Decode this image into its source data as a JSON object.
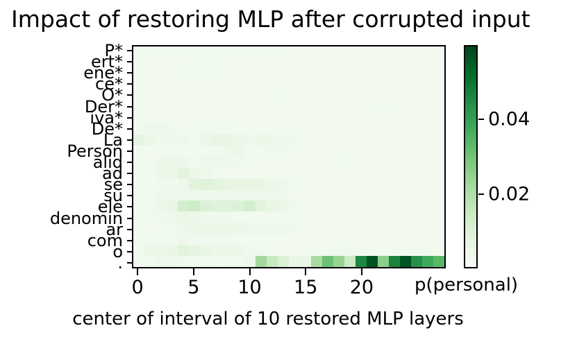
{
  "title": "Impact of restoring MLP after corrupted input",
  "chart_data": {
    "type": "heatmap",
    "title": "Impact of restoring MLP after corrupted input",
    "xlabel": "center of interval of 10 restored MLP layers",
    "colorbar_label": "p(personal)",
    "colorbar_tick_values": [
      0.02,
      0.04
    ],
    "colorbar_tick_labels": [
      "0.02",
      "0.04"
    ],
    "colormap": "Greens",
    "colormap_stops": [
      "#f7fcf5",
      "#e5f5e0",
      "#c7e9c0",
      "#a1d99b",
      "#74c476",
      "#41ab5d",
      "#238b45",
      "#006d2c",
      "#00441b"
    ],
    "vmin": 0.0,
    "vmax": 0.06,
    "x_tick_values": [
      0,
      5,
      10,
      15,
      20
    ],
    "x_tick_labels": [
      "0",
      "5",
      "10",
      "15",
      "20"
    ],
    "x_range": [
      -0.5,
      27.5
    ],
    "n_columns": 28,
    "grid": false,
    "legend": "colorbar-right",
    "tokens": [
      "P*",
      "ert*",
      "ene*",
      "ce*",
      "O*",
      "Der*",
      "iva*",
      "De*",
      "La",
      "Person",
      "alid",
      "ad",
      "se",
      "su",
      "ele",
      "denomin",
      "ar",
      "com",
      "o",
      "."
    ],
    "corrupted_token_marker": "*",
    "values": [
      [
        0.003,
        0.003,
        0.003,
        0.003,
        0.003,
        0.003,
        0.003,
        0.003,
        0.003,
        0.003,
        0.003,
        0.003,
        0.003,
        0.003,
        0.002,
        0.002,
        0.002,
        0.002,
        0.002,
        0.002,
        0.002,
        0.002,
        0.002,
        0.002,
        0.002,
        0.002,
        0.002,
        0.002
      ],
      [
        0.002,
        0.002,
        0.002,
        0.002,
        0.002,
        0.002,
        0.003,
        0.003,
        0.002,
        0.002,
        0.002,
        0.002,
        0.002,
        0.002,
        0.002,
        0.002,
        0.002,
        0.002,
        0.002,
        0.002,
        0.002,
        0.002,
        0.002,
        0.002,
        0.002,
        0.002,
        0.002,
        0.002
      ],
      [
        0.002,
        0.002,
        0.002,
        0.002,
        0.003,
        0.002,
        0.003,
        0.003,
        0.002,
        0.002,
        0.002,
        0.002,
        0.002,
        0.002,
        0.002,
        0.002,
        0.002,
        0.002,
        0.002,
        0.002,
        0.002,
        0.002,
        0.002,
        0.002,
        0.002,
        0.002,
        0.002,
        0.002
      ],
      [
        0.002,
        0.002,
        0.002,
        0.002,
        0.002,
        0.002,
        0.002,
        0.002,
        0.002,
        0.002,
        0.002,
        0.002,
        0.002,
        0.002,
        0.002,
        0.002,
        0.002,
        0.002,
        0.002,
        0.002,
        0.002,
        0.002,
        0.002,
        0.002,
        0.002,
        0.002,
        0.002,
        0.002
      ],
      [
        0.002,
        0.002,
        0.002,
        0.002,
        0.002,
        0.002,
        0.002,
        0.002,
        0.002,
        0.002,
        0.002,
        0.002,
        0.002,
        0.003,
        0.002,
        0.002,
        0.002,
        0.002,
        0.002,
        0.002,
        0.002,
        0.002,
        0.002,
        0.002,
        0.002,
        0.002,
        0.002,
        0.002
      ],
      [
        0.002,
        0.002,
        0.002,
        0.002,
        0.002,
        0.002,
        0.002,
        0.002,
        0.002,
        0.002,
        0.002,
        0.002,
        0.002,
        0.002,
        0.002,
        0.002,
        0.002,
        0.002,
        0.002,
        0.002,
        0.002,
        0.002,
        0.003,
        0.002,
        0.002,
        0.002,
        0.002,
        0.002
      ],
      [
        0.002,
        0.002,
        0.002,
        0.002,
        0.002,
        0.002,
        0.002,
        0.002,
        0.002,
        0.002,
        0.002,
        0.002,
        0.002,
        0.002,
        0.002,
        0.002,
        0.002,
        0.002,
        0.002,
        0.002,
        0.002,
        0.002,
        0.002,
        0.002,
        0.002,
        0.002,
        0.002,
        0.002
      ],
      [
        0.002,
        0.004,
        0.004,
        0.003,
        0.002,
        0.002,
        0.003,
        0.003,
        0.003,
        0.002,
        0.002,
        0.002,
        0.002,
        0.002,
        0.002,
        0.002,
        0.002,
        0.002,
        0.002,
        0.002,
        0.002,
        0.002,
        0.002,
        0.002,
        0.002,
        0.002,
        0.002,
        0.002
      ],
      [
        0.007,
        0.005,
        0.003,
        0.004,
        0.004,
        0.003,
        0.005,
        0.006,
        0.006,
        0.005,
        0.004,
        0.005,
        0.004,
        0.004,
        0.003,
        0.002,
        0.002,
        0.002,
        0.002,
        0.002,
        0.002,
        0.002,
        0.002,
        0.002,
        0.002,
        0.002,
        0.002,
        0.002
      ],
      [
        0.002,
        0.002,
        0.002,
        0.002,
        0.002,
        0.002,
        0.002,
        0.002,
        0.004,
        0.004,
        0.002,
        0.002,
        0.003,
        0.003,
        0.002,
        0.002,
        0.002,
        0.002,
        0.002,
        0.002,
        0.002,
        0.002,
        0.002,
        0.002,
        0.002,
        0.002,
        0.002,
        0.002
      ],
      [
        0.002,
        0.002,
        0.004,
        0.005,
        0.004,
        0.003,
        0.004,
        0.004,
        0.004,
        0.003,
        0.002,
        0.002,
        0.002,
        0.002,
        0.002,
        0.002,
        0.002,
        0.002,
        0.003,
        0.002,
        0.002,
        0.002,
        0.002,
        0.002,
        0.002,
        0.002,
        0.002,
        0.002
      ],
      [
        0.002,
        0.002,
        0.004,
        0.005,
        0.008,
        0.005,
        0.004,
        0.003,
        0.002,
        0.002,
        0.002,
        0.002,
        0.002,
        0.002,
        0.002,
        0.002,
        0.002,
        0.002,
        0.002,
        0.002,
        0.002,
        0.002,
        0.002,
        0.002,
        0.002,
        0.002,
        0.002,
        0.002
      ],
      [
        0.002,
        0.002,
        0.003,
        0.003,
        0.004,
        0.008,
        0.009,
        0.008,
        0.007,
        0.006,
        0.006,
        0.006,
        0.005,
        0.004,
        0.003,
        0.002,
        0.002,
        0.002,
        0.002,
        0.002,
        0.002,
        0.002,
        0.002,
        0.002,
        0.002,
        0.002,
        0.002,
        0.002
      ],
      [
        0.002,
        0.002,
        0.004,
        0.004,
        0.004,
        0.004,
        0.004,
        0.004,
        0.004,
        0.004,
        0.004,
        0.004,
        0.004,
        0.004,
        0.002,
        0.002,
        0.002,
        0.002,
        0.002,
        0.002,
        0.002,
        0.002,
        0.002,
        0.002,
        0.002,
        0.002,
        0.002,
        0.002
      ],
      [
        0.003,
        0.003,
        0.004,
        0.006,
        0.012,
        0.013,
        0.01,
        0.009,
        0.009,
        0.01,
        0.012,
        0.008,
        0.006,
        0.005,
        0.003,
        0.002,
        0.002,
        0.002,
        0.002,
        0.002,
        0.002,
        0.002,
        0.002,
        0.002,
        0.002,
        0.002,
        0.002,
        0.002
      ],
      [
        0.002,
        0.002,
        0.003,
        0.004,
        0.005,
        0.004,
        0.003,
        0.003,
        0.003,
        0.002,
        0.002,
        0.002,
        0.002,
        0.002,
        0.002,
        0.002,
        0.002,
        0.002,
        0.002,
        0.002,
        0.002,
        0.002,
        0.002,
        0.002,
        0.002,
        0.002,
        0.002,
        0.002
      ],
      [
        0.002,
        0.002,
        0.002,
        0.003,
        0.004,
        0.005,
        0.005,
        0.005,
        0.005,
        0.005,
        0.004,
        0.004,
        0.004,
        0.004,
        0.003,
        0.002,
        0.002,
        0.002,
        0.002,
        0.002,
        0.002,
        0.002,
        0.002,
        0.002,
        0.002,
        0.002,
        0.002,
        0.002
      ],
      [
        0.002,
        0.002,
        0.003,
        0.003,
        0.004,
        0.003,
        0.003,
        0.003,
        0.003,
        0.002,
        0.002,
        0.002,
        0.002,
        0.002,
        0.002,
        0.002,
        0.002,
        0.002,
        0.002,
        0.002,
        0.002,
        0.002,
        0.002,
        0.002,
        0.002,
        0.002,
        0.002,
        0.002
      ],
      [
        0.003,
        0.005,
        0.005,
        0.006,
        0.008,
        0.007,
        0.006,
        0.005,
        0.005,
        0.004,
        0.003,
        0.003,
        0.002,
        0.002,
        0.002,
        0.002,
        0.002,
        0.002,
        0.003,
        0.003,
        0.002,
        0.002,
        0.002,
        0.002,
        0.002,
        0.002,
        0.002,
        0.002
      ],
      [
        0.002,
        0.003,
        0.004,
        0.004,
        0.003,
        0.003,
        0.003,
        0.002,
        0.003,
        0.003,
        0.004,
        0.022,
        0.015,
        0.01,
        0.006,
        0.006,
        0.021,
        0.031,
        0.024,
        0.014,
        0.046,
        0.057,
        0.026,
        0.047,
        0.057,
        0.044,
        0.038,
        0.034
      ]
    ]
  }
}
